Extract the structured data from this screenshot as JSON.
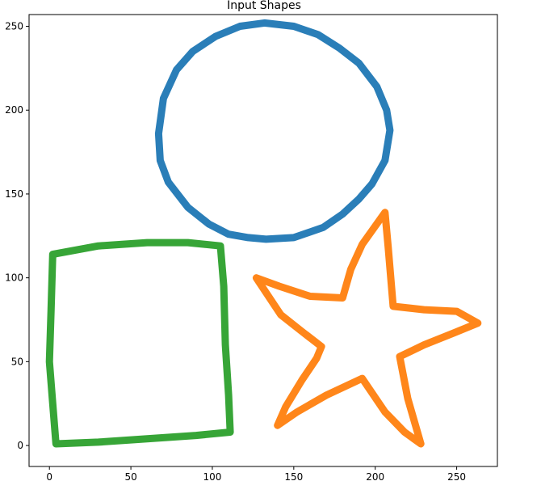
{
  "chart_data": {
    "type": "line",
    "title": "Input Shapes",
    "xlabel": "",
    "ylabel": "",
    "xlim": [
      -12.5,
      275
    ],
    "ylim": [
      -12.5,
      257
    ],
    "xticks": [
      0,
      50,
      100,
      150,
      200,
      250
    ],
    "yticks": [
      0,
      50,
      100,
      150,
      200,
      250
    ],
    "grid": false,
    "legend": "none",
    "series": [
      {
        "color": "#1f77b4",
        "points": [
          [
            132,
            252
          ],
          [
            150,
            250
          ],
          [
            165,
            245
          ],
          [
            178,
            237
          ],
          [
            190,
            228
          ],
          [
            201,
            214
          ],
          [
            207,
            200
          ],
          [
            209,
            188
          ],
          [
            206,
            170
          ],
          [
            198,
            156
          ],
          [
            190,
            147
          ],
          [
            180,
            138
          ],
          [
            168,
            130
          ],
          [
            150,
            124
          ],
          [
            133,
            123
          ],
          [
            122,
            124
          ],
          [
            110,
            126
          ],
          [
            98,
            132
          ],
          [
            85,
            142
          ],
          [
            73,
            157
          ],
          [
            68,
            170
          ],
          [
            67,
            186
          ],
          [
            70,
            207
          ],
          [
            78,
            224
          ],
          [
            88,
            235
          ],
          [
            102,
            244
          ],
          [
            117,
            250
          ],
          [
            132,
            252
          ]
        ]
      },
      {
        "color": "#ff7f0e",
        "points": [
          [
            206,
            139
          ],
          [
            208,
            118
          ],
          [
            211,
            83
          ],
          [
            230,
            81
          ],
          [
            250,
            80
          ],
          [
            263,
            73
          ],
          [
            248,
            67
          ],
          [
            230,
            60
          ],
          [
            215,
            53
          ],
          [
            220,
            28
          ],
          [
            228,
            1
          ],
          [
            218,
            8
          ],
          [
            206,
            20
          ],
          [
            192,
            40
          ],
          [
            170,
            30
          ],
          [
            152,
            20
          ],
          [
            140,
            12
          ],
          [
            145,
            23
          ],
          [
            155,
            39
          ],
          [
            164,
            52
          ],
          [
            167,
            59
          ],
          [
            155,
            68
          ],
          [
            142,
            78
          ],
          [
            127,
            100
          ],
          [
            141,
            95
          ],
          [
            160,
            89
          ],
          [
            180,
            88
          ],
          [
            185,
            105
          ],
          [
            192,
            120
          ],
          [
            206,
            139
          ]
        ]
      },
      {
        "color": "#2ca02c",
        "points": [
          [
            2,
            114
          ],
          [
            30,
            119
          ],
          [
            60,
            121
          ],
          [
            85,
            121
          ],
          [
            105,
            119
          ],
          [
            107,
            95
          ],
          [
            108,
            60
          ],
          [
            110,
            30
          ],
          [
            111,
            8
          ],
          [
            90,
            6
          ],
          [
            60,
            4
          ],
          [
            30,
            2
          ],
          [
            4,
            1
          ],
          [
            2,
            25
          ],
          [
            0,
            50
          ],
          [
            1,
            80
          ],
          [
            2,
            114
          ]
        ]
      }
    ]
  }
}
